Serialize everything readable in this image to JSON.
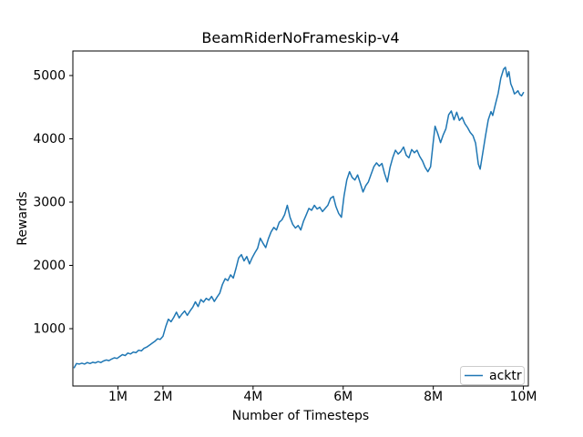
{
  "figure": {
    "background": "#ffffff"
  },
  "chart_data": {
    "type": "line",
    "title": "BeamRiderNoFrameskip-v4",
    "xlabel": "Number of Timesteps",
    "ylabel": "Rewards",
    "x_unit": "millions_of_timesteps",
    "xlim": [
      0,
      10.11
    ],
    "ylim": [
      94,
      5388
    ],
    "grid": false,
    "axis_color": "#000000",
    "xticks": [
      {
        "value": 1,
        "label": "1M"
      },
      {
        "value": 2,
        "label": "2M"
      },
      {
        "value": 4,
        "label": "4M"
      },
      {
        "value": 6,
        "label": "6M"
      },
      {
        "value": 8,
        "label": "8M"
      },
      {
        "value": 10,
        "label": "10M"
      }
    ],
    "yticks": [
      {
        "value": 1000,
        "label": "1000"
      },
      {
        "value": 2000,
        "label": "2000"
      },
      {
        "value": 3000,
        "label": "3000"
      },
      {
        "value": 4000,
        "label": "4000"
      },
      {
        "value": 5000,
        "label": "5000"
      }
    ],
    "legend": {
      "position": "lower right",
      "entries": [
        {
          "label": "acktr",
          "color": "#1f77b4"
        }
      ]
    },
    "series": [
      {
        "name": "acktr",
        "color": "#1f77b4",
        "points": [
          [
            0.03,
            385
          ],
          [
            0.08,
            450
          ],
          [
            0.14,
            440
          ],
          [
            0.2,
            455
          ],
          [
            0.26,
            440
          ],
          [
            0.32,
            465
          ],
          [
            0.38,
            450
          ],
          [
            0.44,
            470
          ],
          [
            0.5,
            460
          ],
          [
            0.56,
            480
          ],
          [
            0.62,
            465
          ],
          [
            0.68,
            490
          ],
          [
            0.74,
            505
          ],
          [
            0.8,
            495
          ],
          [
            0.86,
            520
          ],
          [
            0.92,
            540
          ],
          [
            0.98,
            530
          ],
          [
            1.04,
            560
          ],
          [
            1.1,
            590
          ],
          [
            1.16,
            575
          ],
          [
            1.22,
            615
          ],
          [
            1.28,
            600
          ],
          [
            1.34,
            630
          ],
          [
            1.4,
            620
          ],
          [
            1.46,
            660
          ],
          [
            1.52,
            650
          ],
          [
            1.58,
            690
          ],
          [
            1.64,
            710
          ],
          [
            1.7,
            740
          ],
          [
            1.76,
            770
          ],
          [
            1.82,
            800
          ],
          [
            1.88,
            840
          ],
          [
            1.94,
            830
          ],
          [
            2.0,
            880
          ],
          [
            2.06,
            1030
          ],
          [
            2.12,
            1150
          ],
          [
            2.18,
            1110
          ],
          [
            2.24,
            1180
          ],
          [
            2.3,
            1260
          ],
          [
            2.36,
            1170
          ],
          [
            2.42,
            1230
          ],
          [
            2.48,
            1280
          ],
          [
            2.54,
            1210
          ],
          [
            2.6,
            1280
          ],
          [
            2.66,
            1340
          ],
          [
            2.72,
            1425
          ],
          [
            2.78,
            1350
          ],
          [
            2.84,
            1460
          ],
          [
            2.9,
            1420
          ],
          [
            2.96,
            1480
          ],
          [
            3.02,
            1450
          ],
          [
            3.08,
            1510
          ],
          [
            3.14,
            1430
          ],
          [
            3.2,
            1500
          ],
          [
            3.26,
            1560
          ],
          [
            3.32,
            1700
          ],
          [
            3.38,
            1790
          ],
          [
            3.44,
            1760
          ],
          [
            3.5,
            1850
          ],
          [
            3.56,
            1800
          ],
          [
            3.62,
            1950
          ],
          [
            3.68,
            2120
          ],
          [
            3.74,
            2170
          ],
          [
            3.8,
            2070
          ],
          [
            3.86,
            2140
          ],
          [
            3.92,
            2025
          ],
          [
            3.98,
            2120
          ],
          [
            4.04,
            2200
          ],
          [
            4.1,
            2270
          ],
          [
            4.16,
            2430
          ],
          [
            4.22,
            2350
          ],
          [
            4.28,
            2280
          ],
          [
            4.34,
            2420
          ],
          [
            4.4,
            2530
          ],
          [
            4.46,
            2600
          ],
          [
            4.52,
            2560
          ],
          [
            4.58,
            2680
          ],
          [
            4.64,
            2720
          ],
          [
            4.7,
            2800
          ],
          [
            4.76,
            2950
          ],
          [
            4.82,
            2760
          ],
          [
            4.88,
            2650
          ],
          [
            4.94,
            2590
          ],
          [
            5.0,
            2630
          ],
          [
            5.06,
            2560
          ],
          [
            5.12,
            2700
          ],
          [
            5.18,
            2800
          ],
          [
            5.24,
            2900
          ],
          [
            5.3,
            2870
          ],
          [
            5.36,
            2950
          ],
          [
            5.42,
            2890
          ],
          [
            5.48,
            2920
          ],
          [
            5.54,
            2850
          ],
          [
            5.6,
            2900
          ],
          [
            5.66,
            2950
          ],
          [
            5.72,
            3060
          ],
          [
            5.78,
            3090
          ],
          [
            5.84,
            2930
          ],
          [
            5.9,
            2820
          ],
          [
            5.96,
            2760
          ],
          [
            6.02,
            3100
          ],
          [
            6.08,
            3350
          ],
          [
            6.14,
            3480
          ],
          [
            6.2,
            3390
          ],
          [
            6.26,
            3350
          ],
          [
            6.32,
            3430
          ],
          [
            6.38,
            3300
          ],
          [
            6.44,
            3160
          ],
          [
            6.5,
            3260
          ],
          [
            6.56,
            3320
          ],
          [
            6.62,
            3440
          ],
          [
            6.68,
            3560
          ],
          [
            6.74,
            3620
          ],
          [
            6.8,
            3570
          ],
          [
            6.86,
            3610
          ],
          [
            6.92,
            3450
          ],
          [
            6.98,
            3320
          ],
          [
            7.04,
            3550
          ],
          [
            7.1,
            3700
          ],
          [
            7.16,
            3820
          ],
          [
            7.22,
            3760
          ],
          [
            7.28,
            3800
          ],
          [
            7.34,
            3870
          ],
          [
            7.4,
            3740
          ],
          [
            7.46,
            3700
          ],
          [
            7.52,
            3830
          ],
          [
            7.58,
            3780
          ],
          [
            7.64,
            3820
          ],
          [
            7.7,
            3720
          ],
          [
            7.76,
            3650
          ],
          [
            7.82,
            3550
          ],
          [
            7.88,
            3480
          ],
          [
            7.94,
            3560
          ],
          [
            8.0,
            3950
          ],
          [
            8.04,
            4200
          ],
          [
            8.1,
            4080
          ],
          [
            8.16,
            3940
          ],
          [
            8.22,
            4060
          ],
          [
            8.28,
            4160
          ],
          [
            8.34,
            4380
          ],
          [
            8.4,
            4440
          ],
          [
            8.46,
            4300
          ],
          [
            8.52,
            4420
          ],
          [
            8.58,
            4290
          ],
          [
            8.64,
            4340
          ],
          [
            8.7,
            4240
          ],
          [
            8.76,
            4180
          ],
          [
            8.82,
            4100
          ],
          [
            8.88,
            4050
          ],
          [
            8.94,
            3930
          ],
          [
            9.0,
            3600
          ],
          [
            9.04,
            3520
          ],
          [
            9.1,
            3780
          ],
          [
            9.16,
            4050
          ],
          [
            9.22,
            4300
          ],
          [
            9.28,
            4430
          ],
          [
            9.32,
            4370
          ],
          [
            9.38,
            4550
          ],
          [
            9.44,
            4720
          ],
          [
            9.5,
            4960
          ],
          [
            9.56,
            5100
          ],
          [
            9.6,
            5130
          ],
          [
            9.64,
            4980
          ],
          [
            9.68,
            5060
          ],
          [
            9.72,
            4870
          ],
          [
            9.76,
            4800
          ],
          [
            9.8,
            4710
          ],
          [
            9.84,
            4730
          ],
          [
            9.88,
            4760
          ],
          [
            9.92,
            4700
          ],
          [
            9.96,
            4680
          ],
          [
            10.0,
            4730
          ]
        ]
      }
    ]
  }
}
